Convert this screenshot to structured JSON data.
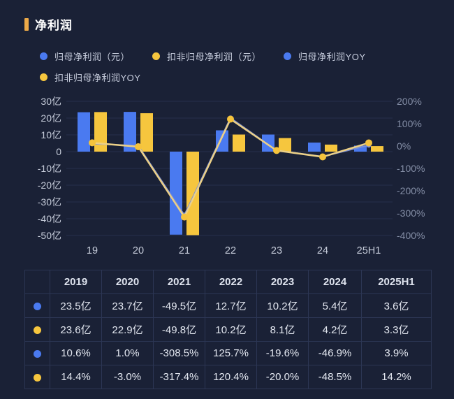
{
  "title": "净利润",
  "legend": [
    {
      "label": "归母净利润（元）",
      "color": "#4a7af0"
    },
    {
      "label": "扣非归母净利润（元）",
      "color": "#f6c63e"
    },
    {
      "label": "归母净利润YOY",
      "color": "#4a7af0"
    },
    {
      "label": "扣非归母净利润YOY",
      "color": "#f6c63e"
    }
  ],
  "chart_data": {
    "type": "bar+line combo",
    "categories": [
      "19",
      "20",
      "21",
      "22",
      "23",
      "24",
      "25H1"
    ],
    "series": [
      {
        "name": "归母净利润（元）",
        "type": "bar",
        "unit": "亿",
        "color": "#4a7af0",
        "values": [
          23.5,
          23.7,
          -49.5,
          12.7,
          10.2,
          5.4,
          3.6
        ]
      },
      {
        "name": "扣非归母净利润（元）",
        "type": "bar",
        "unit": "亿",
        "color": "#f6c63e",
        "values": [
          23.6,
          22.9,
          -49.8,
          10.2,
          8.1,
          4.2,
          3.3
        ]
      },
      {
        "name": "归母净利润YOY",
        "type": "line",
        "unit": "%",
        "color": "#7b8fd4",
        "values": [
          10.6,
          1.0,
          -308.5,
          125.7,
          -19.6,
          -46.9,
          3.9
        ]
      },
      {
        "name": "扣非归母净利润YOY",
        "type": "line",
        "unit": "%",
        "color": "#ecd086",
        "marker_color": "#f5c33c",
        "values": [
          14.4,
          -3.0,
          -317.4,
          120.4,
          -20.0,
          -48.5,
          14.2
        ]
      }
    ],
    "left_axis": {
      "ticks": [
        "30亿",
        "20亿",
        "10亿",
        "0",
        "-10亿",
        "-20亿",
        "-30亿",
        "-40亿",
        "-50亿"
      ],
      "max": 30,
      "min": -50,
      "unit": "亿"
    },
    "right_axis": {
      "ticks": [
        "200%",
        "100%",
        "0%",
        "-100%",
        "-200%",
        "-300%",
        "-400%"
      ],
      "max": 200,
      "min": -400,
      "unit": "%"
    },
    "grid": true,
    "legend_position": "top",
    "title": "净利润"
  },
  "table": {
    "col_headers": [
      "2019",
      "2020",
      "2021",
      "2022",
      "2023",
      "2024",
      "2025H1"
    ],
    "rows": [
      {
        "dot_color": "#4a7af0",
        "series": "归母净利润（元）",
        "cells": [
          "23.5亿",
          "23.7亿",
          "-49.5亿",
          "12.7亿",
          "10.2亿",
          "5.4亿",
          "3.6亿"
        ]
      },
      {
        "dot_color": "#f6c63e",
        "series": "扣非归母净利润（元）",
        "cells": [
          "23.6亿",
          "22.9亿",
          "-49.8亿",
          "10.2亿",
          "8.1亿",
          "4.2亿",
          "3.3亿"
        ]
      },
      {
        "dot_color": "#4a7af0",
        "series": "归母净利润YOY",
        "cells": [
          "10.6%",
          "1.0%",
          "-308.5%",
          "125.7%",
          "-19.6%",
          "-46.9%",
          "3.9%"
        ]
      },
      {
        "dot_color": "#f6c63e",
        "series": "扣非归母净利润YOY",
        "cells": [
          "14.4%",
          "-3.0%",
          "-317.4%",
          "120.4%",
          "-20.0%",
          "-48.5%",
          "14.2%"
        ]
      }
    ]
  },
  "colors": {
    "background": "#1a2136",
    "accent_bar": "#edaa48",
    "bar_blue": "#4a7af0",
    "bar_yellow": "#f6c63e",
    "line_yellow": "#ecd086",
    "line_yellow_marker": "#f5c33c",
    "line_blue": "#7b8fd4",
    "grid_line": "#252f4c",
    "axis_left_text": "#c6ccda",
    "axis_right_text": "#848ea6",
    "table_border": "#2c3654",
    "table_text": "#e3e7f0",
    "legend_text": "#c8cede"
  }
}
